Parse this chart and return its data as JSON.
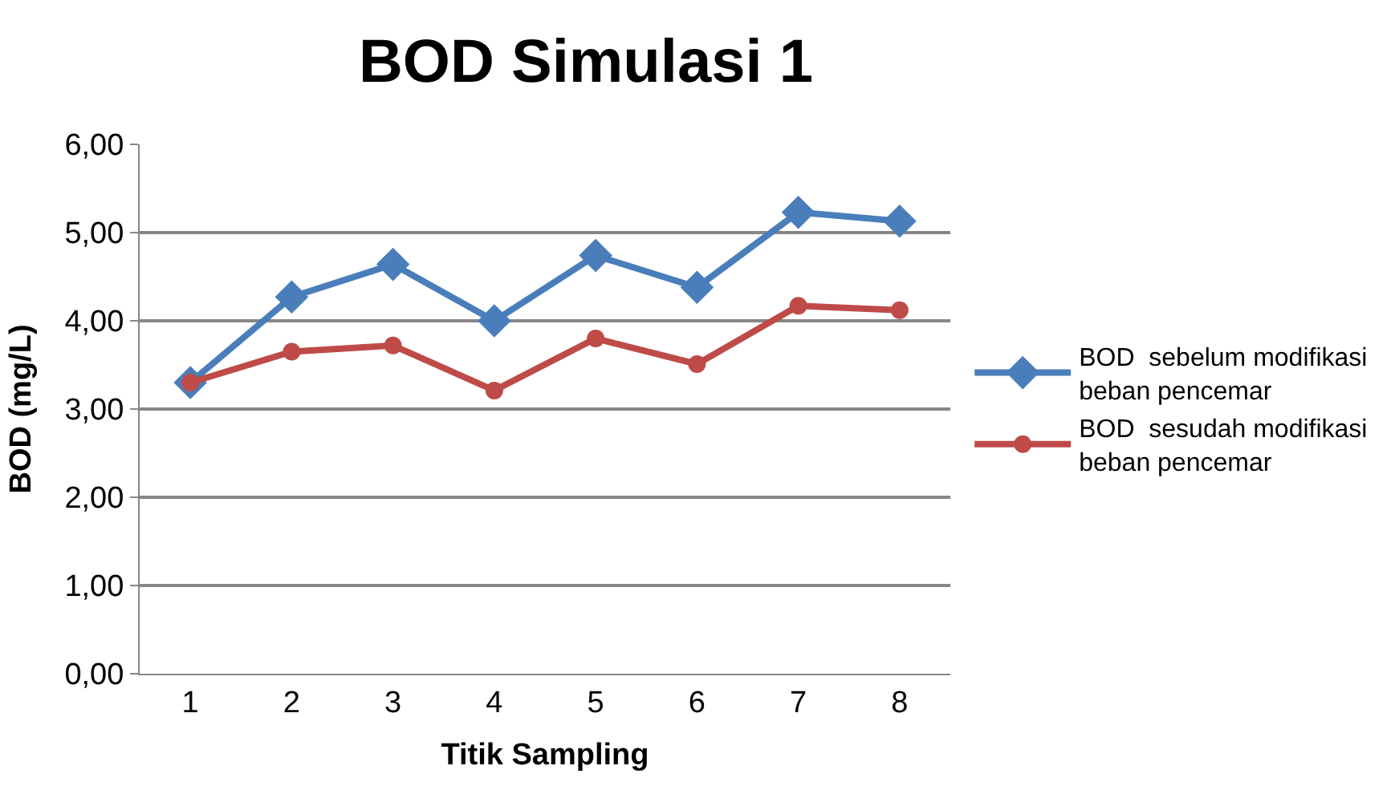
{
  "chart_data": {
    "type": "line",
    "title": "BOD Simulasi 1",
    "xlabel": "Titik Sampling",
    "ylabel": "BOD (mg/L)",
    "categories": [
      "1",
      "2",
      "3",
      "4",
      "5",
      "6",
      "7",
      "8"
    ],
    "series": [
      {
        "name": "BOD  sebelum modifikasi beban pencemar",
        "color": "#4a7ebb",
        "marker": "diamond",
        "values": [
          3.3,
          4.27,
          4.64,
          4.0,
          4.74,
          4.38,
          5.23,
          5.13
        ]
      },
      {
        "name": "BOD  sesudah modifikasi beban pencemar",
        "color": "#be4b48",
        "marker": "circle",
        "values": [
          3.3,
          3.65,
          3.72,
          3.21,
          3.8,
          3.51,
          4.17,
          4.12
        ]
      }
    ],
    "ylim": [
      0,
      6
    ],
    "yticks": [
      {
        "value": 0,
        "label": "0,00"
      },
      {
        "value": 1,
        "label": "1,00"
      },
      {
        "value": 2,
        "label": "2,00"
      },
      {
        "value": 3,
        "label": "3,00"
      },
      {
        "value": 4,
        "label": "4,00"
      },
      {
        "value": 5,
        "label": "5,00"
      },
      {
        "value": 6,
        "label": "6,00"
      }
    ],
    "grid": "y",
    "legend": "right",
    "line_style": "solid"
  }
}
